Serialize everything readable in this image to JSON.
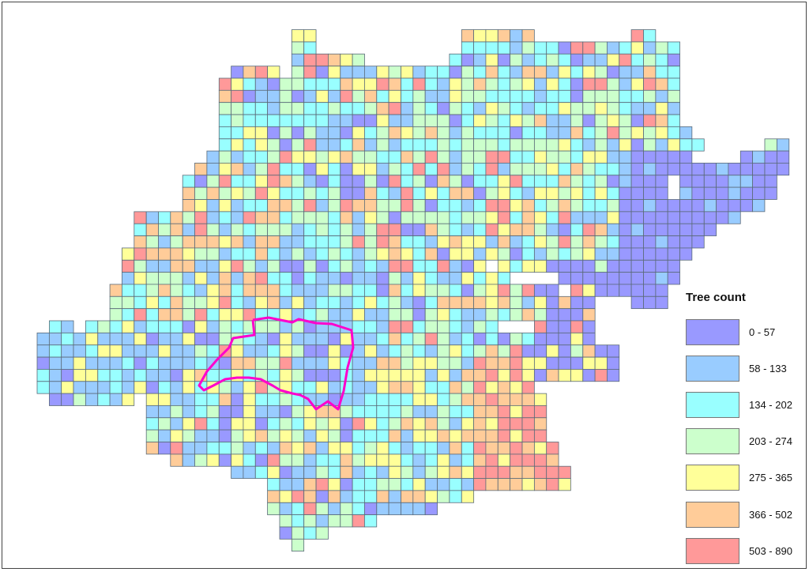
{
  "legend": {
    "title": "Tree count",
    "classes": [
      {
        "label": "0 - 57",
        "color": "#9999ff"
      },
      {
        "label": "58 - 133",
        "color": "#99ccff"
      },
      {
        "label": "134 - 202",
        "color": "#99ffff"
      },
      {
        "label": "203 - 274",
        "color": "#ccffcc"
      },
      {
        "label": "275 - 365",
        "color": "#ffff99"
      },
      {
        "label": "366 - 502",
        "color": "#ffcc99"
      },
      {
        "label": "503 - 890",
        "color": "#ff9999"
      }
    ]
  },
  "overlay": {
    "outline_color": "#ff00cc"
  },
  "grid_line_color": "#5a6a78"
}
